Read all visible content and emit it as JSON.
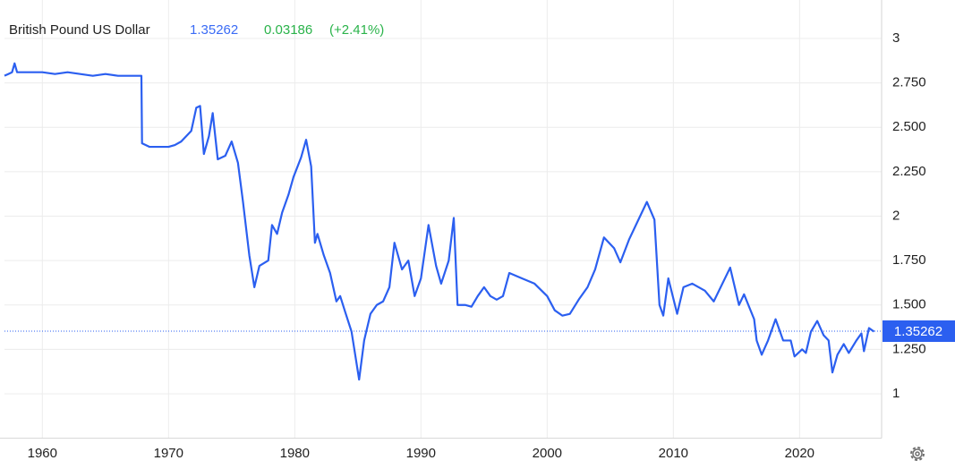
{
  "chart_data": {
    "type": "line",
    "title": "British Pound US Dollar",
    "current_price": 1.35262,
    "change": 0.03186,
    "change_percent": "(+2.41%)",
    "x": [
      1957,
      1957.3,
      1957.6,
      1957.8,
      1958,
      1959,
      1960,
      1961,
      1962,
      1963,
      1964,
      1965,
      1966,
      1967,
      1967.85,
      1967.9,
      1968.5,
      1969,
      1970,
      1970.5,
      1971,
      1971.8,
      1972.2,
      1972.5,
      1972.8,
      1973.2,
      1973.5,
      1973.9,
      1974.5,
      1975,
      1975.5,
      1975.9,
      1976.4,
      1976.8,
      1977.2,
      1977.9,
      1978.2,
      1978.6,
      1979,
      1979.5,
      1979.9,
      1980.5,
      1980.9,
      1981.3,
      1981.6,
      1981.8,
      1982.3,
      1982.8,
      1983.3,
      1983.6,
      1984,
      1984.5,
      1985.1,
      1985.5,
      1986,
      1986.5,
      1987,
      1987.5,
      1987.9,
      1988.5,
      1989,
      1989.5,
      1990,
      1990.6,
      1991.2,
      1991.6,
      1992.2,
      1992.6,
      1992.9,
      1993.5,
      1994,
      1994.5,
      1995,
      1995.5,
      1996,
      1996.5,
      1997,
      1998,
      1999,
      2000,
      2000.6,
      2001.2,
      2001.8,
      2002.5,
      2003.2,
      2003.8,
      2004.5,
      2005.3,
      2005.8,
      2006.5,
      2007.5,
      2007.9,
      2008.5,
      2008.9,
      2009.2,
      2009.6,
      2010.3,
      2010.8,
      2011.5,
      2012.5,
      2013.2,
      2014.5,
      2015.2,
      2015.6,
      2016.4,
      2016.6,
      2017,
      2017.5,
      2018.1,
      2018.7,
      2019.3,
      2019.6,
      2020.2,
      2020.5,
      2020.9,
      2021.4,
      2021.9,
      2022.3,
      2022.6,
      2023,
      2023.5,
      2023.9,
      2024.5,
      2024.9,
      2025.1,
      2025.5,
      2025.9
    ],
    "series": [
      {
        "name": "British Pound US Dollar",
        "color": "#2b5ff0",
        "values": [
          2.79,
          2.8,
          2.81,
          2.86,
          2.81,
          2.81,
          2.81,
          2.8,
          2.81,
          2.8,
          2.79,
          2.8,
          2.79,
          2.79,
          2.79,
          2.41,
          2.39,
          2.39,
          2.39,
          2.4,
          2.42,
          2.48,
          2.61,
          2.62,
          2.35,
          2.45,
          2.58,
          2.32,
          2.34,
          2.42,
          2.3,
          2.08,
          1.78,
          1.6,
          1.72,
          1.75,
          1.95,
          1.9,
          2.02,
          2.12,
          2.22,
          2.33,
          2.43,
          2.28,
          1.85,
          1.9,
          1.78,
          1.68,
          1.52,
          1.55,
          1.46,
          1.35,
          1.08,
          1.3,
          1.45,
          1.5,
          1.52,
          1.6,
          1.85,
          1.7,
          1.75,
          1.55,
          1.65,
          1.95,
          1.72,
          1.62,
          1.75,
          1.99,
          1.5,
          1.5,
          1.49,
          1.55,
          1.6,
          1.55,
          1.53,
          1.55,
          1.68,
          1.65,
          1.62,
          1.55,
          1.47,
          1.44,
          1.45,
          1.53,
          1.6,
          1.7,
          1.88,
          1.82,
          1.74,
          1.87,
          2.02,
          2.08,
          1.98,
          1.5,
          1.44,
          1.65,
          1.45,
          1.6,
          1.62,
          1.58,
          1.52,
          1.71,
          1.5,
          1.56,
          1.42,
          1.3,
          1.22,
          1.3,
          1.42,
          1.3,
          1.3,
          1.21,
          1.25,
          1.23,
          1.35,
          1.41,
          1.33,
          1.3,
          1.12,
          1.22,
          1.28,
          1.23,
          1.3,
          1.34,
          1.24,
          1.37,
          1.35
        ]
      }
    ],
    "xlim": [
      1957,
      2026.5
    ],
    "ylim": [
      0.75,
      3.2
    ],
    "xticks": [
      1960,
      1970,
      1980,
      1990,
      2000,
      2010,
      2020
    ],
    "yticks": [
      1,
      {
        "value": 1.25,
        "label": "1.250"
      },
      {
        "value": 1.5,
        "label": "1.500"
      },
      {
        "value": 1.75,
        "label": "1.750"
      },
      2,
      {
        "value": 2.25,
        "label": "2.250"
      },
      {
        "value": 2.5,
        "label": "2.500"
      },
      {
        "value": 2.75,
        "label": "2.750"
      },
      3
    ],
    "grid": true,
    "price_color": "#3a6bf5",
    "change_color": "#2ab34a"
  }
}
